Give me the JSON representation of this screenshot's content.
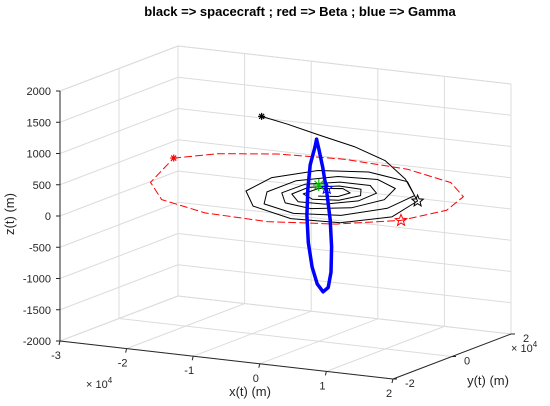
{
  "chart_data": {
    "type": "line3d",
    "title": "black => spacecraft ;     red => Beta ;      blue => Gamma",
    "xlabel": "x(t)   (m)",
    "ylabel": "y(t)   (m)",
    "zlabel": "z(t)   (m)",
    "x_exponent": "× 10",
    "x_exponent_power": "4",
    "y_exponent": "× 10",
    "y_exponent_power": "4",
    "xlim": [
      -30000,
      20000
    ],
    "ylim": [
      -20000,
      20000
    ],
    "zlim": [
      -2000,
      2000
    ],
    "xticks": [
      -30000,
      -20000,
      -10000,
      0,
      10000,
      20000
    ],
    "xtick_labels": [
      "-3",
      "-2",
      "-1",
      "0",
      "1",
      "2"
    ],
    "yticks": [
      -20000,
      0,
      20000
    ],
    "ytick_labels": [
      "-2",
      "0",
      "2"
    ],
    "zticks": [
      -2000,
      -1500,
      -1000,
      -500,
      0,
      500,
      1000,
      1500,
      2000
    ],
    "ztick_labels": [
      "-2000",
      "-1500",
      "-1000",
      "-500",
      "0",
      "500",
      "1000",
      "1500",
      "2000"
    ],
    "grid": true,
    "series": [
      {
        "name": "spacecraft",
        "color": "#000000",
        "style": "solid",
        "points": [
          [
            -17000,
            19000,
            1050
          ],
          [
            -12000,
            16500,
            1030
          ],
          [
            -6000,
            14000,
            970
          ],
          [
            0,
            12000,
            900
          ],
          [
            6000,
            9000,
            800
          ],
          [
            11000,
            4500,
            650
          ],
          [
            15500,
            -1500,
            460
          ],
          [
            14500,
            -8000,
            310
          ],
          [
            9000,
            -13000,
            240
          ],
          [
            2000,
            -14000,
            240
          ],
          [
            -5000,
            -11000,
            300
          ],
          [
            -8500,
            -5500,
            400
          ],
          [
            -7500,
            1000,
            510
          ],
          [
            -3000,
            6500,
            580
          ],
          [
            3500,
            9000,
            590
          ],
          [
            10000,
            7500,
            540
          ],
          [
            13500,
            2000,
            460
          ],
          [
            12500,
            -5000,
            370
          ],
          [
            8000,
            -10500,
            300
          ],
          [
            1500,
            -12000,
            280
          ],
          [
            -4000,
            -9500,
            320
          ],
          [
            -6000,
            -4000,
            390
          ],
          [
            -4500,
            2500,
            470
          ],
          [
            0,
            6500,
            520
          ],
          [
            5500,
            7500,
            520
          ],
          [
            9500,
            4500,
            480
          ],
          [
            10500,
            -1500,
            420
          ],
          [
            8000,
            -7000,
            360
          ],
          [
            3000,
            -9500,
            330
          ],
          [
            -1500,
            -8000,
            340
          ],
          [
            -4000,
            -3500,
            390
          ],
          [
            -3000,
            2000,
            440
          ],
          [
            1000,
            5000,
            470
          ],
          [
            5500,
            5000,
            470
          ],
          [
            8000,
            1500,
            440
          ],
          [
            7500,
            -3500,
            400
          ],
          [
            4000,
            -7000,
            370
          ],
          [
            0,
            -7000,
            360
          ],
          [
            -2500,
            -3500,
            390
          ],
          [
            -2000,
            1000,
            420
          ],
          [
            1500,
            3500,
            440
          ],
          [
            5000,
            3000,
            440
          ],
          [
            6500,
            -500,
            420
          ],
          [
            5000,
            -4500,
            400
          ],
          [
            1500,
            -5500,
            390
          ],
          [
            -1000,
            -3000,
            400
          ],
          [
            -500,
            1000,
            420
          ],
          [
            2500,
            2500,
            430
          ],
          [
            4500,
            500,
            420
          ],
          [
            4000,
            -2500,
            410
          ],
          [
            1500,
            -3500,
            405
          ]
        ]
      },
      {
        "name": "Beta",
        "color": "#ff0000",
        "style": "dashed",
        "points": [
          [
            -24000,
            5000,
            550
          ],
          [
            -20000,
            11000,
            560
          ],
          [
            -13000,
            15500,
            560
          ],
          [
            -4000,
            17500,
            550
          ],
          [
            6000,
            16500,
            530
          ],
          [
            14500,
            12000,
            500
          ],
          [
            19500,
            5000,
            460
          ],
          [
            20500,
            -3000,
            400
          ],
          [
            17000,
            -10500,
            330
          ],
          [
            9500,
            -15500,
            270
          ],
          [
            0,
            -17500,
            230
          ],
          [
            -10000,
            -16000,
            220
          ],
          [
            -18500,
            -11500,
            250
          ],
          [
            -23500,
            -4000,
            330
          ],
          [
            -24000,
            5000,
            550
          ]
        ]
      },
      {
        "name": "Gamma",
        "color": "#0000ff",
        "style": "solid",
        "points": [
          [
            1000,
            -3000,
            1300
          ],
          [
            500,
            -2500,
            1150
          ],
          [
            -500,
            -1800,
            850
          ],
          [
            -1200,
            -1000,
            450
          ],
          [
            -1700,
            -200,
            0
          ],
          [
            -1800,
            500,
            -450
          ],
          [
            -1500,
            1100,
            -850
          ],
          [
            -900,
            1500,
            -1120
          ],
          [
            -100,
            1700,
            -1240
          ],
          [
            700,
            1600,
            -1160
          ],
          [
            1300,
            1200,
            -900
          ],
          [
            1700,
            500,
            -480
          ],
          [
            1800,
            -200,
            -30
          ],
          [
            1600,
            -900,
            420
          ],
          [
            1300,
            -1600,
            830
          ],
          [
            1100,
            -2400,
            1120
          ],
          [
            1000,
            -3000,
            1300
          ]
        ]
      }
    ],
    "markers": [
      {
        "name": "spacecraft-start",
        "color": "#000000",
        "symbol": "*",
        "point": [
          -17000,
          19000,
          1050
        ]
      },
      {
        "name": "beta-start",
        "color": "#ff0000",
        "symbol": "*",
        "point": [
          -24000,
          5000,
          550
        ]
      },
      {
        "name": "spacecraft-end",
        "color": "#000000",
        "symbol": "star",
        "point": [
          15500,
          -1500,
          460
        ]
      },
      {
        "name": "beta-end",
        "color": "#ff0000",
        "symbol": "star",
        "point": [
          17000,
          -10500,
          330
        ]
      },
      {
        "name": "gamma-end",
        "color": "#0000ff",
        "symbol": "star",
        "point": [
          2300,
          -2500,
          520
        ]
      },
      {
        "name": "center-body",
        "color": "#00c000",
        "symbol": "*",
        "point": [
          0,
          0,
          500
        ]
      }
    ]
  }
}
